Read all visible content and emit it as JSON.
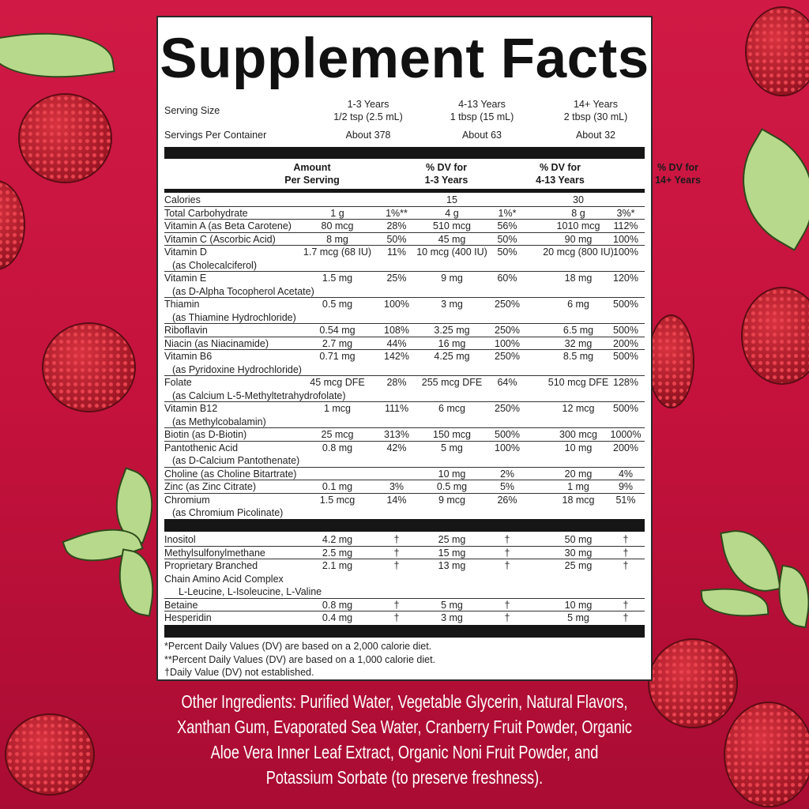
{
  "title": "Supplement Facts",
  "serving": {
    "size_label": "Serving Size",
    "containers_label": "Servings Per Container",
    "groups": [
      {
        "age": "1-3 Years",
        "size": "1/2 tsp (2.5 mL)",
        "servings": "About 378"
      },
      {
        "age": "4-13 Years",
        "size": "1 tbsp (15 mL)",
        "servings": "About 63"
      },
      {
        "age": "14+ Years",
        "size": "2 tbsp (30 mL)",
        "servings": "About 32"
      }
    ]
  },
  "header": {
    "amount": [
      "Amount",
      "Per Serving"
    ],
    "dv1": [
      "% DV for",
      "1-3 Years"
    ],
    "dv2": [
      "% DV for",
      "4-13 Years"
    ],
    "dv3": [
      "% DV for",
      "14+ Years"
    ]
  },
  "nutrients": [
    {
      "name": "Calories",
      "sub": "",
      "a1": "",
      "d1": "",
      "a2": "15",
      "d2": "",
      "a3": "30",
      "d3": ""
    },
    {
      "name": "Total Carbohydrate",
      "sub": "",
      "a1": "1 g",
      "d1": "1%**",
      "a2": "4 g",
      "d2": "1%*",
      "a3": "8 g",
      "d3": "3%*"
    },
    {
      "name": "Vitamin A (as Beta Carotene)",
      "sub": "",
      "a1": "80 mcg",
      "d1": "28%",
      "a2": "510 mcg",
      "d2": "56%",
      "a3": "1010 mcg",
      "d3": "112%"
    },
    {
      "name": "Vitamin C (Ascorbic Acid)",
      "sub": "",
      "a1": "8 mg",
      "d1": "50%",
      "a2": "45 mg",
      "d2": "50%",
      "a3": "90 mg",
      "d3": "100%"
    },
    {
      "name": "Vitamin D",
      "sub": "(as Cholecalciferol)",
      "a1": "1.7 mcg (68 IU)",
      "d1": "11%",
      "a2": "10 mcg (400 IU)",
      "d2": "50%",
      "a3": "20 mcg (800 IU)",
      "d3": "100%"
    },
    {
      "name": "Vitamin E",
      "sub": "(as D-Alpha Tocopherol Acetate)",
      "a1": "1.5 mg",
      "d1": "25%",
      "a2": "9 mg",
      "d2": "60%",
      "a3": "18 mg",
      "d3": "120%"
    },
    {
      "name": "Thiamin",
      "sub": "(as Thiamine Hydrochloride)",
      "a1": "0.5 mg",
      "d1": "100%",
      "a2": "3 mg",
      "d2": "250%",
      "a3": "6 mg",
      "d3": "500%"
    },
    {
      "name": "Riboflavin",
      "sub": "",
      "a1": "0.54 mg",
      "d1": "108%",
      "a2": "3.25 mg",
      "d2": "250%",
      "a3": "6.5 mg",
      "d3": "500%"
    },
    {
      "name": "Niacin (as Niacinamide)",
      "sub": "",
      "a1": "2.7 mg",
      "d1": "44%",
      "a2": "16 mg",
      "d2": "100%",
      "a3": "32 mg",
      "d3": "200%"
    },
    {
      "name": "Vitamin B6",
      "sub": "(as Pyridoxine Hydrochloride)",
      "a1": "0.71 mg",
      "d1": "142%",
      "a2": "4.25 mg",
      "d2": "250%",
      "a3": "8.5 mg",
      "d3": "500%"
    },
    {
      "name": "Folate",
      "sub": "(as Calcium L-5-Methyltetrahydrofolate)",
      "a1": "45 mcg DFE",
      "d1": "28%",
      "a2": "255 mcg DFE",
      "d2": "64%",
      "a3": "510 mcg DFE",
      "d3": "128%"
    },
    {
      "name": "Vitamin B12",
      "sub": "(as Methylcobalamin)",
      "a1": "1 mcg",
      "d1": "111%",
      "a2": "6 mcg",
      "d2": "250%",
      "a3": "12 mcg",
      "d3": "500%"
    },
    {
      "name": "Biotin (as D-Biotin)",
      "sub": "",
      "a1": "25 mcg",
      "d1": "313%",
      "a2": "150 mcg",
      "d2": "500%",
      "a3": "300 mcg",
      "d3": "1000%"
    },
    {
      "name": "Pantothenic Acid",
      "sub": "(as D-Calcium Pantothenate)",
      "a1": "0.8 mg",
      "d1": "42%",
      "a2": "5 mg",
      "d2": "100%",
      "a3": "10 mg",
      "d3": "200%"
    },
    {
      "name": "Choline (as Choline Bitartrate)",
      "sub": "",
      "a1": "",
      "d1": "",
      "a2": "10 mg",
      "d2": "2%",
      "a3": "20 mg",
      "d3": "4%"
    },
    {
      "name": "Zinc (as Zinc Citrate)",
      "sub": "",
      "a1": "0.1 mg",
      "d1": "3%",
      "a2": "0.5 mg",
      "d2": "5%",
      "a3": "1 mg",
      "d3": "9%"
    },
    {
      "name": "Chromium",
      "sub": "(as Chromium Picolinate)",
      "a1": "1.5 mcg",
      "d1": "14%",
      "a2": "9 mcg",
      "d2": "26%",
      "a3": "18 mcg",
      "d3": "51%"
    }
  ],
  "others": [
    {
      "name": "Inositol",
      "sub": "",
      "sub2": "",
      "a1": "4.2 mg",
      "d1": "†",
      "a2": "25 mg",
      "d2": "†",
      "a3": "50 mg",
      "d3": "†"
    },
    {
      "name": "Methylsulfonylmethane",
      "sub": "",
      "sub2": "",
      "a1": "2.5 mg",
      "d1": "†",
      "a2": "15 mg",
      "d2": "†",
      "a3": "30 mg",
      "d3": "†"
    },
    {
      "name": "Proprietary Branched",
      "sub": "Chain Amino Acid Complex",
      "sub2": "L-Leucine, L-Isoleucine, L-Valine",
      "a1": "2.1 mg",
      "d1": "†",
      "a2": "13 mg",
      "d2": "†",
      "a3": "25 mg",
      "d3": "†"
    },
    {
      "name": "Betaine",
      "sub": "",
      "sub2": "",
      "a1": "0.8 mg",
      "d1": "†",
      "a2": "5 mg",
      "d2": "†",
      "a3": "10 mg",
      "d3": "†"
    },
    {
      "name": "Hesperidin",
      "sub": "",
      "sub2": "",
      "a1": "0.4 mg",
      "d1": "†",
      "a2": "3 mg",
      "d2": "†",
      "a3": "5 mg",
      "d3": "†"
    }
  ],
  "footnotes": [
    "*Percent Daily Values (DV) are based on a 2,000 calorie diet.",
    "**Percent Daily Values (DV) are based on a 1,000 calorie diet.",
    "†Daily Value (DV) not established."
  ],
  "other_ingredients": [
    "Other Ingredients: Purified Water, Vegetable Glycerin, Natural Flavors,",
    "Xanthan Gum, Evaporated Sea Water, Cranberry Fruit Powder, Organic",
    "Aloe Vera Inner Leaf Extract, Organic Noni Fruit Powder, and",
    "Potassium Sorbate (to preserve freshness)."
  ],
  "colors": {
    "background": "#c4123c",
    "panel": "#ffffff",
    "bars": "#161616",
    "leaf": "#b7d98b",
    "berry": "#a11726"
  }
}
